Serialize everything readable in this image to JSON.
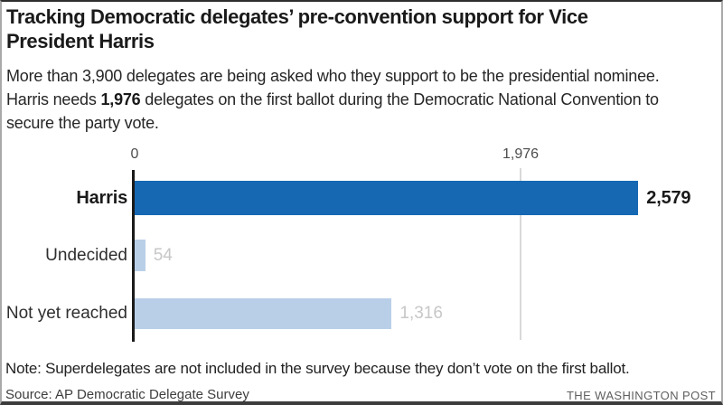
{
  "header": {
    "title": "Tracking Democratic delegates’ pre-convention support for Vice President Harris",
    "subtitle_part1": "More than 3,900 delegates are being asked who they support to be the presidential nominee. Harris needs ",
    "subtitle_bold": "1,976",
    "subtitle_part2": " delegates on the first ballot during the Democratic National Convention to secure the party vote."
  },
  "chart_data": {
    "type": "bar",
    "orientation": "horizontal",
    "categories": [
      "Harris",
      "Undecided",
      "Not yet reached"
    ],
    "values": [
      2579,
      54,
      1316
    ],
    "value_labels": [
      "2,579",
      "54",
      "1,316"
    ],
    "xlim": [
      0,
      2640
    ],
    "axis_ticks": [
      {
        "value": 0,
        "label": "0"
      },
      {
        "value": 1976,
        "label": "1,976"
      }
    ],
    "reference_line_value": 1976,
    "grid": "single light vertical reference line at 1,976; dark baseline at 0",
    "legend_position": "none",
    "colors": {
      "harris_bar": "#1668b3",
      "secondary_bar": "#b9cfe8",
      "axis_baseline": "#1a1a1a",
      "reference_line": "#d9d9d9",
      "muted_value_label": "#c7c7c7"
    }
  },
  "footer": {
    "note": "Note: Superdelegates are not included in the survey because they don’t vote on the first ballot.",
    "source": "Source: AP Democratic Delegate Survey",
    "brand": "THE WASHINGTON POST"
  }
}
